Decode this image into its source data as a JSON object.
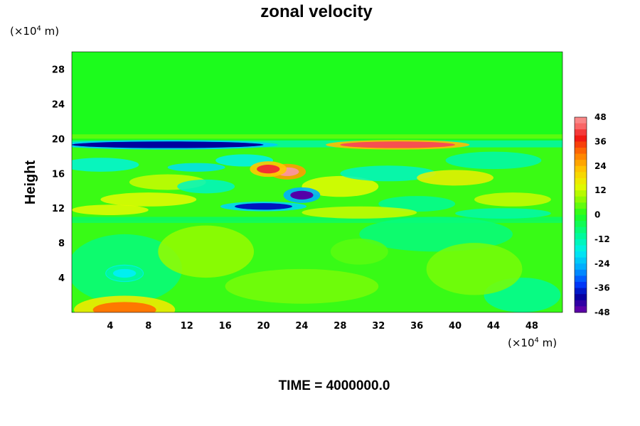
{
  "chart_data": {
    "type": "heatmap",
    "title": "zonal velocity",
    "xlabel": "",
    "ylabel": "Height",
    "x_unit": "(×10⁴ m)",
    "y_unit": "(×10⁴ m)",
    "x_unit_parts": [
      "(×10",
      "4",
      " m)"
    ],
    "y_unit_parts": [
      "(×10",
      "4",
      " m)"
    ],
    "xlim": [
      0,
      51.2
    ],
    "ylim": [
      0,
      30
    ],
    "x_ticks": [
      4,
      8,
      12,
      16,
      20,
      24,
      28,
      32,
      36,
      40,
      44,
      48
    ],
    "y_ticks": [
      4,
      8,
      12,
      16,
      20,
      24,
      28
    ],
    "colorbar": {
      "min": -48,
      "max": 48,
      "ticks": [
        48,
        36,
        24,
        12,
        0,
        -12,
        -24,
        -36,
        -48
      ],
      "levels": 32
    },
    "features": [
      {
        "label": "westward jet",
        "x": [
          0,
          20
        ],
        "y": 19.3,
        "value": -40
      },
      {
        "label": "eastward jet",
        "x": [
          28,
          40
        ],
        "y": 19.3,
        "value": 42
      },
      {
        "label": "positive core",
        "x": 22.5,
        "y": 16.2,
        "value": 48
      },
      {
        "label": "positive core",
        "x": 20.5,
        "y": 16.5,
        "value": 40
      },
      {
        "label": "negative core",
        "x": 24,
        "y": 13.5,
        "value": -46
      },
      {
        "label": "negative streak",
        "x": [
          17,
          23
        ],
        "y": 12.2,
        "value": -38
      },
      {
        "label": "surface maximum",
        "x": 5.5,
        "y": 0.3,
        "value": 30
      },
      {
        "label": "negative patch",
        "x": 5.5,
        "y": 4.5,
        "value": -18
      }
    ],
    "caption": "TIME = 4000000.0"
  }
}
